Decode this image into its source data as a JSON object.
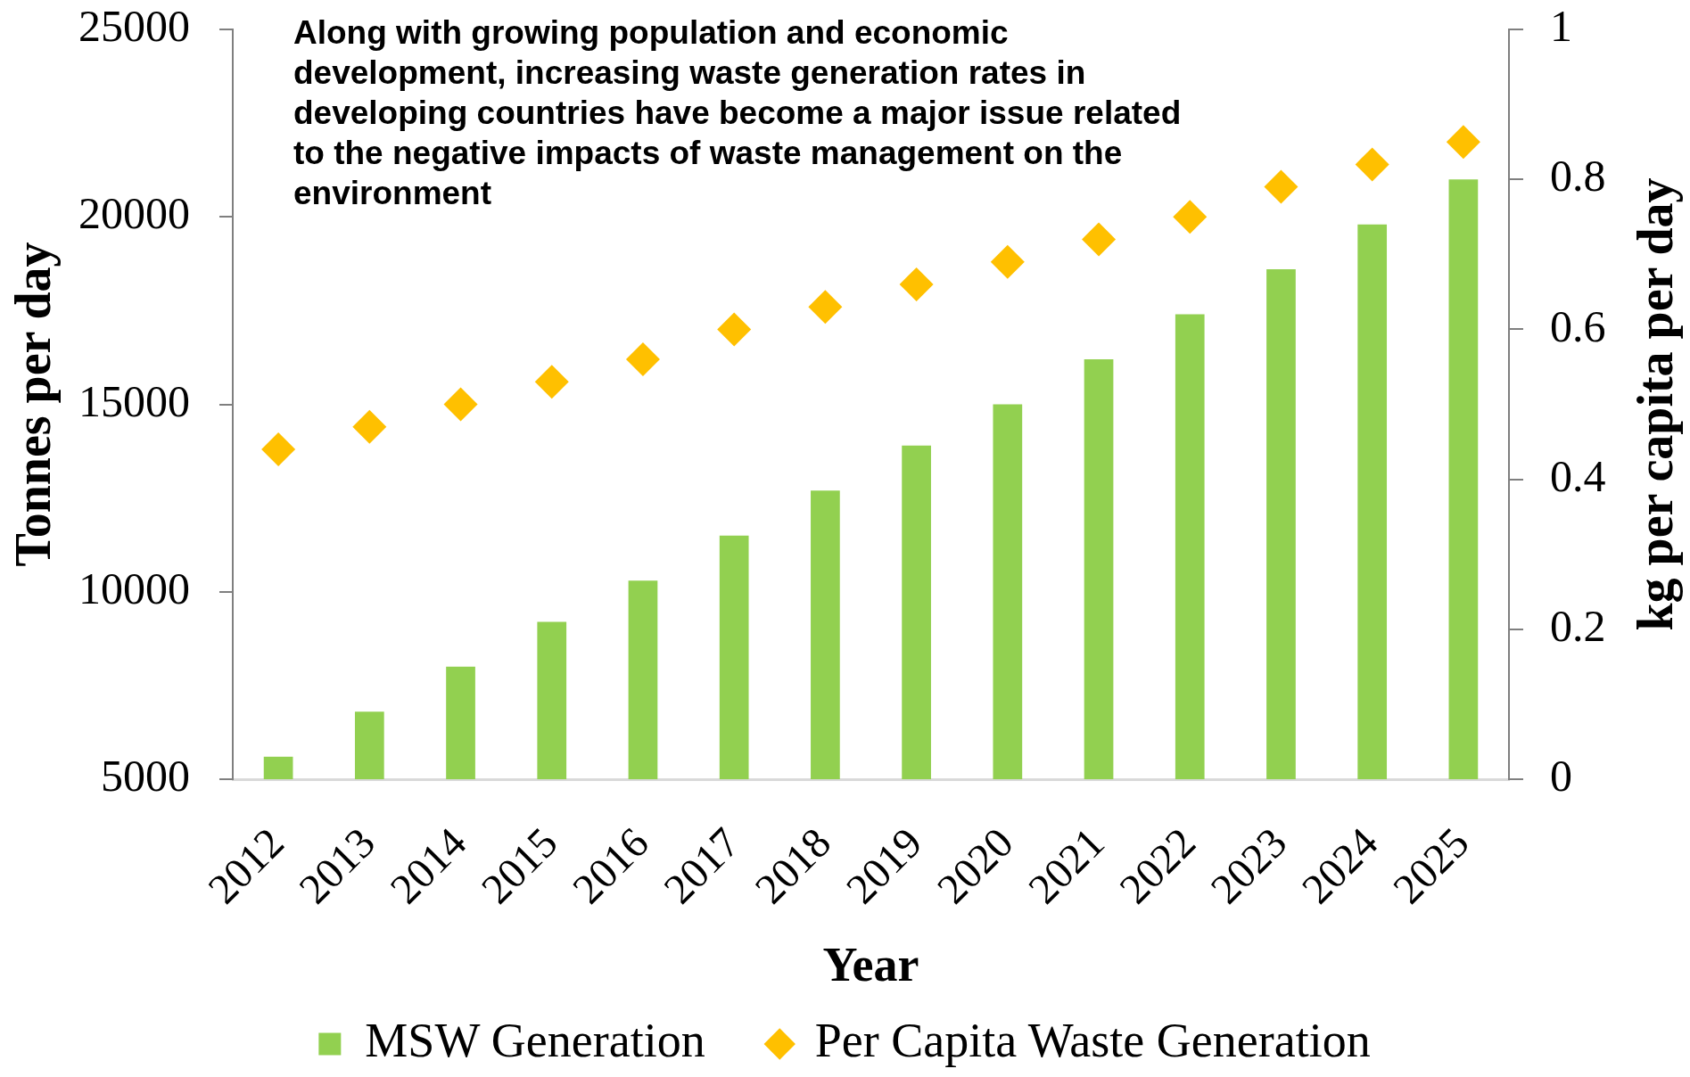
{
  "chart_data": {
    "type": "bar",
    "annotations": [
      "Along with growing population and economic development, increasing waste generation rates in developing countries have become a major issue related to the negative impacts of waste management on the environment"
    ],
    "xlabel": "Year",
    "ylabel": "Tonnes per day",
    "y2label": "kg per capita per day",
    "categories": [
      "2012",
      "2013",
      "2014",
      "2015",
      "2016",
      "2017",
      "2018",
      "2019",
      "2020",
      "2021",
      "2022",
      "2023",
      "2024",
      "2025"
    ],
    "series": [
      {
        "name": "MSW Generation",
        "color": "#92d050",
        "values": [
          5600,
          6800,
          8000,
          9200,
          10300,
          11500,
          12700,
          13900,
          15000,
          16200,
          17400,
          18600,
          19800,
          21000
        ]
      },
      {
        "name": "Per Capita Waste Generation",
        "type": "scatter",
        "axis": "y2",
        "color": "#ffc000",
        "values": [
          0.44,
          0.47,
          0.5,
          0.53,
          0.56,
          0.6,
          0.63,
          0.66,
          0.69,
          0.72,
          0.75,
          0.79,
          0.82,
          0.85
        ]
      }
    ],
    "ylim": [
      5000,
      25000
    ],
    "yticks": [
      5000,
      10000,
      15000,
      20000,
      25000
    ],
    "y2lim": [
      0,
      1
    ],
    "y2ticks": [
      0,
      0.2,
      0.4,
      0.6,
      0.8,
      1
    ],
    "grid": false,
    "legend": "bottom",
    "marker": "diamond"
  }
}
